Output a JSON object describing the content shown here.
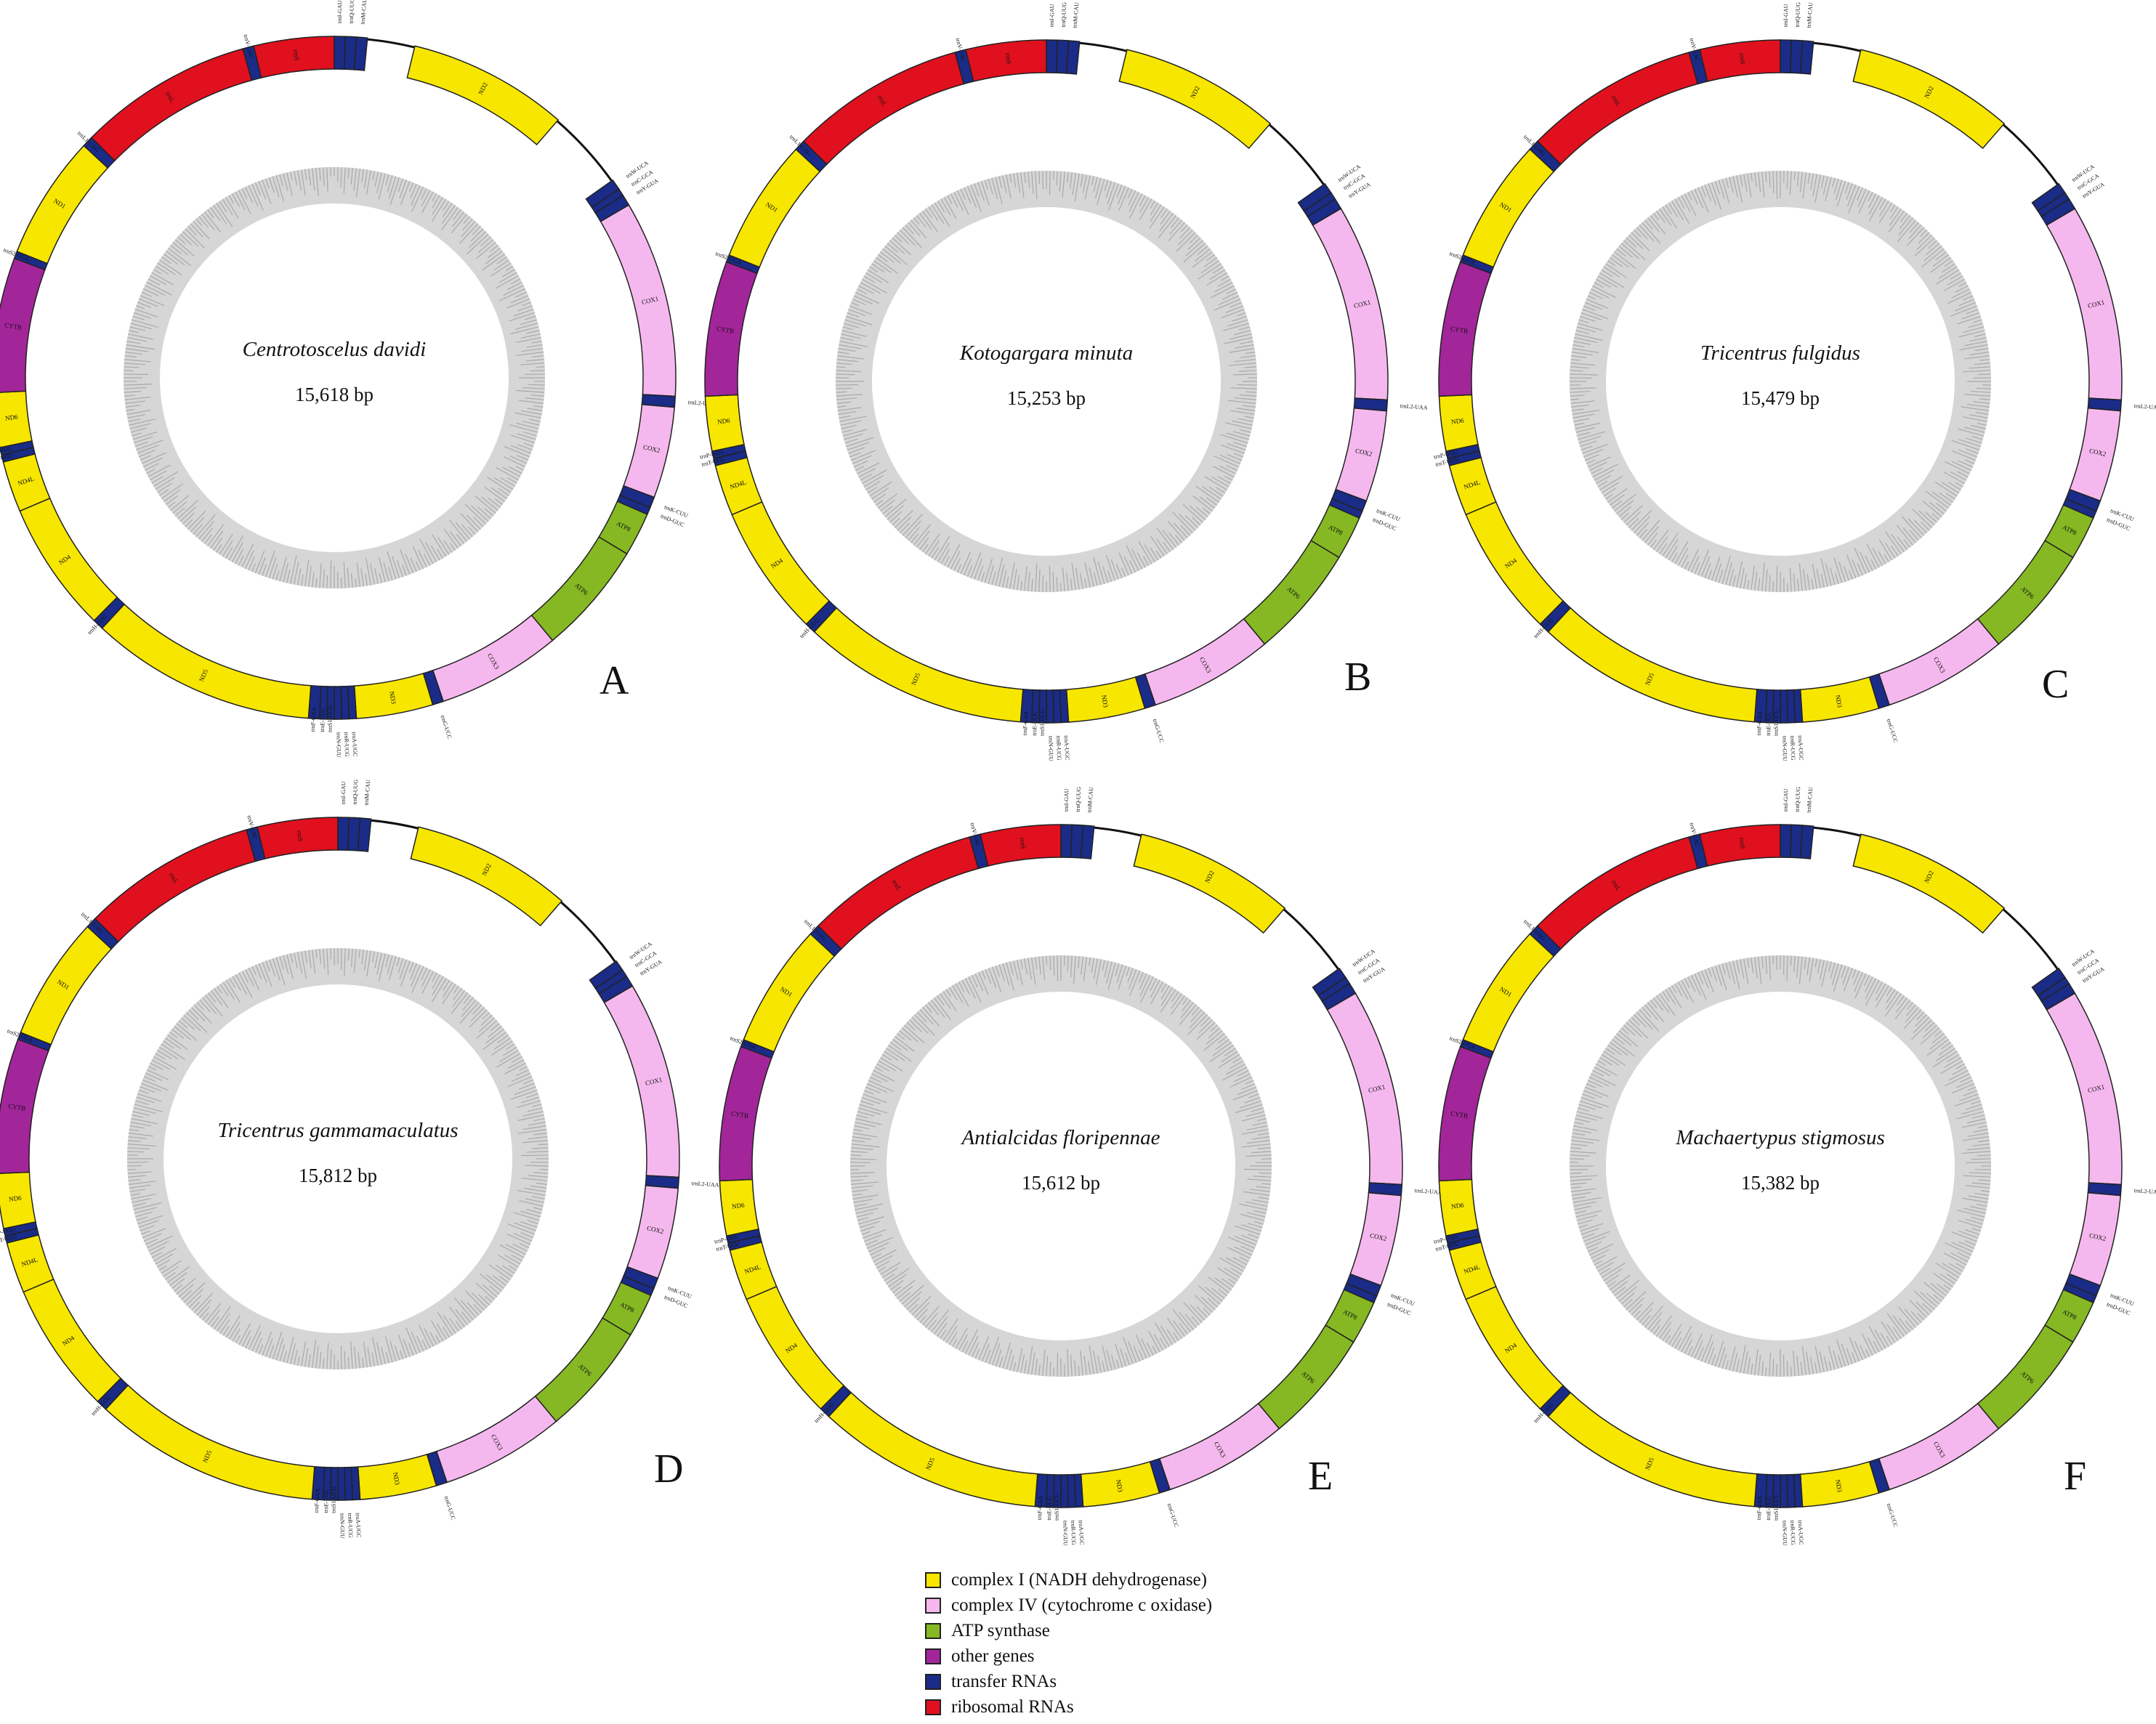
{
  "colors": {
    "complex_i": "#f7e600",
    "complex_iv": "#f5b8ee",
    "atp": "#86b823",
    "other": "#a3259a",
    "trna": "#1a2c87",
    "rrna": "#e0101e",
    "gc_track": "#b4b4b4"
  },
  "panels": [
    {
      "letter": "A",
      "species": "Centrotoscelus davidi",
      "length": "15,618 bp"
    },
    {
      "letter": "B",
      "species": "Kotogargara minuta",
      "length": "15,253 bp"
    },
    {
      "letter": "C",
      "species": "Tricentrus fulgidus",
      "length": "15,479 bp"
    },
    {
      "letter": "D",
      "species": "Tricentrus gammamaculatus",
      "length": "15,812 bp"
    },
    {
      "letter": "E",
      "species": "Antialcidas floripennae",
      "length": "15,612 bp"
    },
    {
      "letter": "F",
      "species": "Machaertypus stigmosus",
      "length": "15,382 bp"
    }
  ],
  "genes": [
    {
      "name": "ND2",
      "start": 22,
      "end": 66,
      "type": "complex_i"
    },
    {
      "name": "COX1",
      "start": 96,
      "end": 150,
      "type": "complex_iv"
    },
    {
      "name": "trnL2-UAA",
      "start": 150,
      "end": 153,
      "type": "trna"
    },
    {
      "name": "COX2",
      "start": 153,
      "end": 178,
      "type": "complex_iv"
    },
    {
      "name": "trnK-CUU",
      "start": 178,
      "end": 181,
      "type": "trna"
    },
    {
      "name": "trnD-GUC",
      "start": 181,
      "end": 183,
      "type": "trna"
    },
    {
      "name": "ATP8",
      "start": 183,
      "end": 195,
      "type": "atp"
    },
    {
      "name": "ATP6",
      "start": 195,
      "end": 226,
      "type": "atp"
    },
    {
      "name": "COX3",
      "start": 226,
      "end": 260,
      "type": "complex_iv"
    },
    {
      "name": "trnG-UCC",
      "start": 260,
      "end": 263,
      "type": "trna"
    },
    {
      "name": "ND3",
      "start": 263,
      "end": 284,
      "type": "complex_i"
    },
    {
      "name": "trnA-UGC",
      "start": 284,
      "end": 286,
      "type": "trna"
    },
    {
      "name": "trnR-UCG",
      "start": 286,
      "end": 288,
      "type": "trna"
    },
    {
      "name": "trnN-GUU",
      "start": 288,
      "end": 290,
      "type": "trna"
    },
    {
      "name": "trnS1-UCU",
      "start": 290,
      "end": 292,
      "type": "trna"
    },
    {
      "name": "trnE-UUC",
      "start": 292,
      "end": 294,
      "type": "trna"
    },
    {
      "name": "trnF-GAA",
      "start": 294,
      "end": 297,
      "type": "trna"
    },
    {
      "name": "ND5",
      "start": 297,
      "end": 359,
      "type": "complex_i"
    },
    {
      "name": "trnH-GUG",
      "start": 359,
      "end": 362,
      "type": "trna"
    },
    {
      "name": "ND4",
      "start": 362,
      "end": 398,
      "type": "complex_i"
    },
    {
      "name": "ND4L",
      "start": 398,
      "end": 412,
      "type": "complex_i"
    },
    {
      "name": "trnT-UGU",
      "start": 412,
      "end": 414,
      "type": "trna"
    },
    {
      "name": "trnP-UGG",
      "start": 414,
      "end": 416,
      "type": "trna"
    },
    {
      "name": "ND6",
      "start": 416,
      "end": 431,
      "type": "complex_i"
    },
    {
      "name": "CYTB",
      "start": 431,
      "end": 468,
      "type": "other"
    },
    {
      "name": "trnS2-UGA",
      "start": 468,
      "end": 470,
      "type": "trna"
    },
    {
      "name": "ND1",
      "start": 470,
      "end": 504,
      "type": "complex_i"
    },
    {
      "name": "trnL1-UAG",
      "start": 504,
      "end": 507,
      "type": "trna"
    },
    {
      "name": "rrnL",
      "start": 507,
      "end": 555,
      "type": "rrna"
    },
    {
      "name": "trnV-UAC",
      "start": 555,
      "end": 558,
      "type": "trna"
    },
    {
      "name": "rrnS",
      "start": 558,
      "end": 580,
      "type": "rrna"
    },
    {
      "name": "trnI-GAU",
      "start": 0,
      "end": 3,
      "type": "trna"
    },
    {
      "name": "trnQ-UUG",
      "start": 3,
      "end": 6,
      "type": "trna"
    },
    {
      "name": "trnM-CAU",
      "start": 6,
      "end": 9,
      "type": "trna"
    },
    {
      "name": "trnW-UCA",
      "start": 88,
      "end": 91,
      "type": "trna"
    },
    {
      "name": "trnC-GCA",
      "start": 91,
      "end": 93,
      "type": "trna"
    },
    {
      "name": "trnY-GUA",
      "start": 93,
      "end": 96,
      "type": "trna"
    }
  ],
  "legend": [
    {
      "key": "complex_i",
      "label": "complex I (NADH dehydrogenase)"
    },
    {
      "key": "complex_iv",
      "label": "complex IV (cytochrome c oxidase)"
    },
    {
      "key": "atp",
      "label": "ATP synthase"
    },
    {
      "key": "other",
      "label": "other genes"
    },
    {
      "key": "trna",
      "label": "transfer RNAs"
    },
    {
      "key": "rrna",
      "label": "ribosomal RNAs"
    }
  ]
}
